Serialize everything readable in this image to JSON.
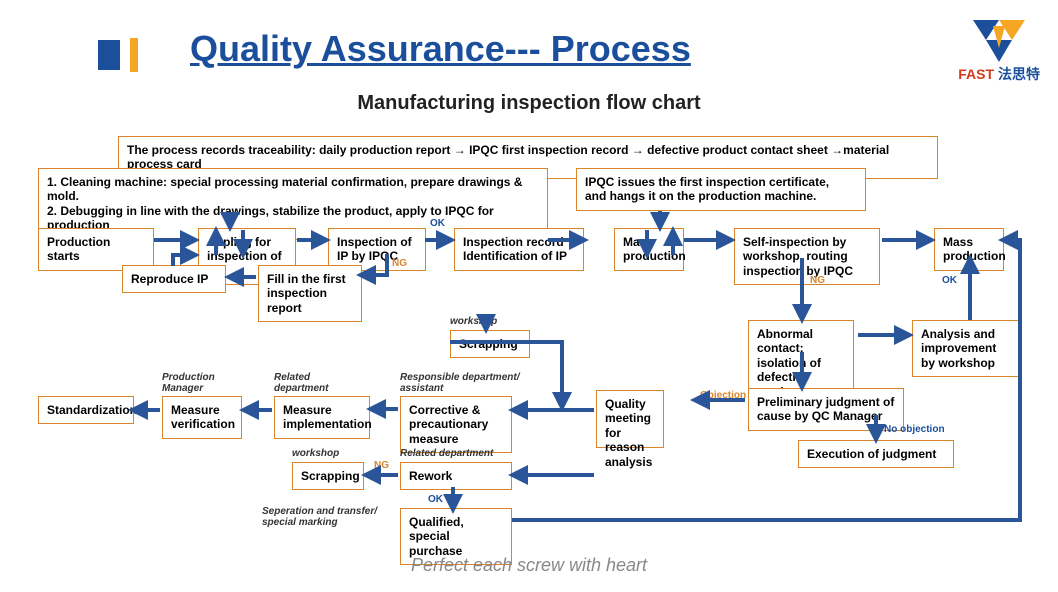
{
  "header": {
    "title": "Quality Assurance--- Process",
    "subtitle": "Manufacturing inspection flow chart",
    "footer": "Perfect each screw with heart",
    "logo_fast": "FAST",
    "logo_cn": "法思特"
  },
  "colors": {
    "primary_blue": "#1b4f9b",
    "accent_orange": "#f5a623",
    "box_border": "#d9852b",
    "arrow_blue": "#2a5599",
    "label_orange": "#d9852b",
    "logo_red": "#d23a1a",
    "background": "#ffffff"
  },
  "boxes": {
    "trace": "The process records traceability: daily production report → IPQC first inspection record → defective product contact sheet →material process card",
    "prep": "1. Cleaning machine: special processing material confirmation, prepare drawings & mold.\n2. Debugging in line with the drawings, stabilize the product, apply to IPQC for production",
    "ipqc_cert": "IPQC issues the first inspection certificate,\nand hangs it on the production machine.",
    "prod_start": "Production starts",
    "apply_ip": "Appling for inspection of IP",
    "insp_ip": "Inspection of IP by IPQC",
    "insp_rec": "Inspection record Identification of IP",
    "mass_prod1": "Mass production",
    "self_insp": "Self-inspection by workshop, routing inspection by IPQC",
    "mass_prod2": "Mass production",
    "reproduce": "Reproduce IP",
    "fill_report": "Fill in the first inspection report",
    "scrap1": "Scrapping",
    "abnormal": "Abnormal contact; isolation of defective product",
    "analysis": "Analysis and improvement by workshop",
    "standardization": "Standardization",
    "measure_ver": "Measure verification",
    "measure_impl": "Measure implementation",
    "corrective": "Corrective & precautionary measure",
    "quality_mtg": "Quality meeting for reason analysis",
    "prelim": "Preliminary judgment of cause by QC Manager",
    "scrap2": "Scrapping",
    "rework": "Rework",
    "exec": "Execution of judgment",
    "qualified": "Qualified,\nspecial purchase"
  },
  "small_labels": {
    "workshop1": "workshop",
    "prod_mgr": "Production Manager",
    "rel_dept1": "Related department",
    "resp_dept": "Responsible department/ assistant",
    "workshop2": "workshop",
    "rel_dept2": "Related department",
    "sep_transfer": "Seperation and transfer/ special marking"
  },
  "edge_labels": {
    "ok1": "OK",
    "ng1": "NG",
    "ng2": "NG",
    "ok2": "OK",
    "objection": "Objection",
    "no_obj": "No objection",
    "ng3": "NG",
    "ok3": "OK"
  },
  "arrows": {
    "stroke": "#2a5599",
    "width": 4,
    "paths": [
      "M 230,212 L 230,228",
      "M 660,211 L 660,228",
      "M 154,240 L 196,240",
      "M 297,240 L 327,240",
      "M 425,240 L 452,240",
      "M 548,240 L 585,240",
      "M 684,240 L 732,240",
      "M 882,240 L 932,240",
      "M 387,254 L 387,275 L 360,275",
      "M 256,277 L 228,277",
      "M 173,266 L 173,255 L 196,255",
      "M 216,255 L 216,230",
      "M 243,230 L 243,255",
      "M 647,230 L 647,255",
      "M 673,255 L 673,230",
      "M 486,318 L 486,330",
      "M 450,342 L 562,342 L 562,408",
      "M 802,258 L 802,320",
      "M 858,335 L 910,335",
      "M 970,320 L 970,258",
      "M 802,352 L 802,388",
      "M 745,400 L 694,400",
      "M 876,415 L 876,440",
      "M 594,410 L 512,410",
      "M 594,475 L 512,475",
      "M 398,409 L 370,409",
      "M 272,410 L 243,410",
      "M 160,410 L 132,410",
      "M 398,475 L 365,475",
      "M 453,487 L 453,510",
      "M 512,520 L 1020,520 L 1020,240 L 1002,240"
    ]
  }
}
